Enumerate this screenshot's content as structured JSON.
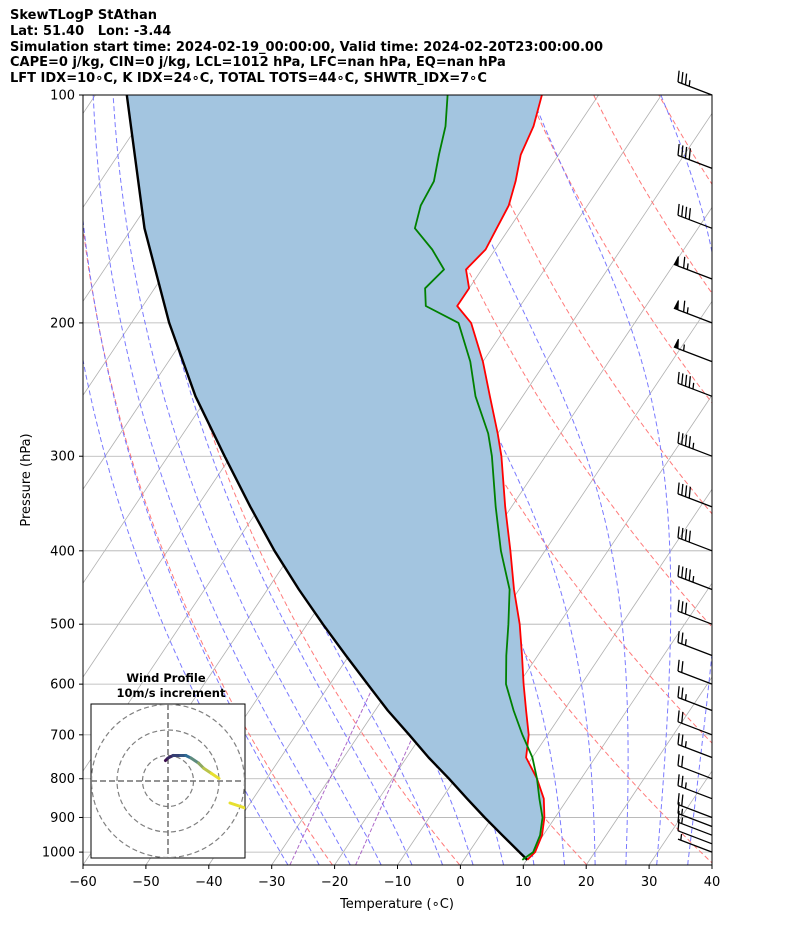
{
  "header": {
    "line1": "SkewTLogP StAthan",
    "line2": "Lat: 51.40   Lon: -3.44",
    "line3": "Simulation start time: 2024-02-19_00:00:00, Valid time: 2024-02-20T23:00:00.00",
    "line4": "CAPE=0 j/kg, CIN=0 j/kg, LCL=1012 hPa, LFC=nan hPa, EQ=nan hPa",
    "line5": "LFT IDX=10∘C, K IDX=24∘C, TOTAL TOTS=44∘C, SHWTR_IDX=7∘C"
  },
  "colors": {
    "temperature": "#ff0000",
    "dewpoint": "#008000",
    "parcel": "#000000",
    "shading": "#a3c5e0",
    "isotherm": "#b0b0b0",
    "dry_adiabat": "#ff6b6b",
    "moist_adiabat": "#6b6bff",
    "mixing_ratio": "#a050c0",
    "hodograph_start": "#3b0f4f",
    "hodograph_mid": "#2f6e96",
    "hodograph_end": "#e8e030"
  },
  "chart_data": {
    "type": "line",
    "xlabel": "Temperature (∘C)",
    "ylabel": "Pressure (hPa)",
    "xlim": [
      -60,
      40
    ],
    "ylim": [
      1040,
      100
    ],
    "y_scale": "log",
    "x_ticks": [
      "−60",
      "−50",
      "−40",
      "−30",
      "−20",
      "−10",
      "0",
      "10",
      "20",
      "30",
      "40"
    ],
    "y_ticks": [
      "100",
      "200",
      "300",
      "400",
      "500",
      "600",
      "700",
      "800",
      "900",
      "1000"
    ],
    "grid": true,
    "series": [
      {
        "key": "temperature",
        "points": [
          [
            1024,
            10.1
          ],
          [
            1000,
            10.5
          ],
          [
            950,
            9.8
          ],
          [
            900,
            8.3
          ],
          [
            850,
            6.2
          ],
          [
            800,
            3.0
          ],
          [
            750,
            -1.0
          ],
          [
            700,
            -3.0
          ],
          [
            650,
            -6.0
          ],
          [
            600,
            -9.2
          ],
          [
            550,
            -12.5
          ],
          [
            500,
            -16.2
          ],
          [
            450,
            -20.8
          ],
          [
            400,
            -25.5
          ],
          [
            350,
            -31.0
          ],
          [
            300,
            -37.0
          ],
          [
            280,
            -40.0
          ],
          [
            250,
            -45.2
          ],
          [
            225,
            -50.0
          ],
          [
            200,
            -56.0
          ],
          [
            190,
            -60.0
          ],
          [
            180,
            -60.0
          ],
          [
            170,
            -62.5
          ],
          [
            160,
            -61.5
          ],
          [
            150,
            -62.0
          ],
          [
            140,
            -62.5
          ],
          [
            130,
            -64.0
          ],
          [
            120,
            -66.0
          ],
          [
            110,
            -67.0
          ],
          [
            100,
            -69.0
          ]
        ]
      },
      {
        "key": "dewpoint",
        "points": [
          [
            1024,
            9.3
          ],
          [
            1000,
            10.2
          ],
          [
            950,
            9.5
          ],
          [
            900,
            8.0
          ],
          [
            850,
            5.5
          ],
          [
            800,
            3.0
          ],
          [
            750,
            0.0
          ],
          [
            700,
            -4.0
          ],
          [
            650,
            -8.0
          ],
          [
            600,
            -12.0
          ],
          [
            550,
            -15.0
          ],
          [
            500,
            -18.0
          ],
          [
            450,
            -21.5
          ],
          [
            400,
            -27.0
          ],
          [
            350,
            -32.5
          ],
          [
            300,
            -38.5
          ],
          [
            280,
            -41.5
          ],
          [
            250,
            -47.5
          ],
          [
            225,
            -52.0
          ],
          [
            200,
            -58.0
          ],
          [
            190,
            -65.0
          ],
          [
            180,
            -67.0
          ],
          [
            170,
            -66.0
          ],
          [
            160,
            -70.0
          ],
          [
            150,
            -75.0
          ],
          [
            140,
            -76.5
          ],
          [
            130,
            -77.0
          ],
          [
            120,
            -79.0
          ],
          [
            110,
            -81.0
          ],
          [
            100,
            -84.0
          ]
        ]
      },
      {
        "key": "parcel",
        "points": [
          [
            1024,
            10.1
          ],
          [
            1000,
            8.0
          ],
          [
            950,
            3.5
          ],
          [
            900,
            -1.2
          ],
          [
            850,
            -6.0
          ],
          [
            800,
            -11.0
          ],
          [
            750,
            -16.5
          ],
          [
            700,
            -22.0
          ],
          [
            650,
            -28.0
          ],
          [
            600,
            -34.0
          ],
          [
            550,
            -40.5
          ],
          [
            500,
            -47.5
          ],
          [
            450,
            -55.0
          ],
          [
            400,
            -63.0
          ],
          [
            350,
            -71.5
          ],
          [
            300,
            -81.0
          ],
          [
            250,
            -92.0
          ],
          [
            200,
            -104.0
          ],
          [
            150,
            -118.0
          ],
          [
            100,
            -135.0
          ]
        ]
      }
    ],
    "wind_barbs_hpa": [
      1000,
      975,
      950,
      925,
      900,
      850,
      800,
      750,
      700,
      650,
      600,
      550,
      500,
      450,
      400,
      350,
      300,
      250,
      225,
      200,
      175,
      150,
      125,
      100
    ],
    "wind_barbs_kt": [
      5,
      10,
      15,
      15,
      20,
      25,
      20,
      25,
      20,
      25,
      20,
      25,
      30,
      45,
      40,
      40,
      45,
      45,
      55,
      65,
      65,
      40,
      40,
      35
    ],
    "hodograph": {
      "title": "Wind Profile",
      "subtitle": "10m/s increment",
      "rings_ms": [
        10,
        20,
        30
      ],
      "points_ms": [
        [
          -1,
          8
        ],
        [
          0,
          9
        ],
        [
          2,
          10
        ],
        [
          5,
          10
        ],
        [
          7,
          10
        ],
        [
          9,
          9
        ],
        [
          12,
          7
        ],
        [
          14,
          5
        ],
        [
          17,
          3
        ],
        [
          20,
          1
        ]
      ]
    }
  }
}
